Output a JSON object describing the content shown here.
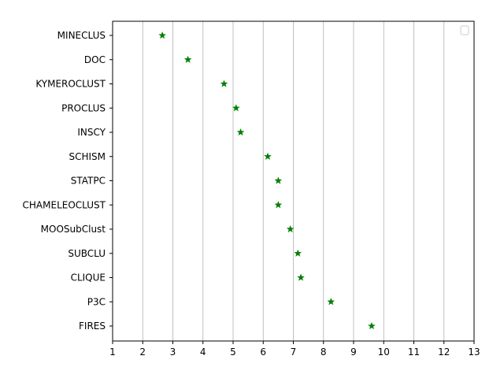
{
  "chart_data": {
    "type": "scatter",
    "title": "",
    "xlabel": "",
    "ylabel": "",
    "xlim": [
      1,
      13
    ],
    "xticks": [
      1,
      2,
      3,
      4,
      5,
      6,
      7,
      8,
      9,
      10,
      11,
      12,
      13
    ],
    "grid": "vertical",
    "legend": "top-right, empty",
    "marker": "star",
    "colors": {
      "marker": "#008000",
      "grid": "#b0b0b0",
      "axis": "#000000"
    },
    "categories": [
      "MINECLUS",
      "DOC",
      "KYMEROCLUST",
      "PROCLUS",
      "INSCY",
      "SCHISM",
      "STATPC",
      "CHAMELEOCLUST",
      "MOOSubClust",
      "SUBCLU",
      "CLIQUE",
      "P3C",
      "FIRES"
    ],
    "values": [
      2.65,
      3.5,
      4.7,
      5.1,
      5.25,
      6.15,
      6.5,
      6.5,
      6.9,
      7.15,
      7.25,
      8.25,
      9.6
    ]
  }
}
